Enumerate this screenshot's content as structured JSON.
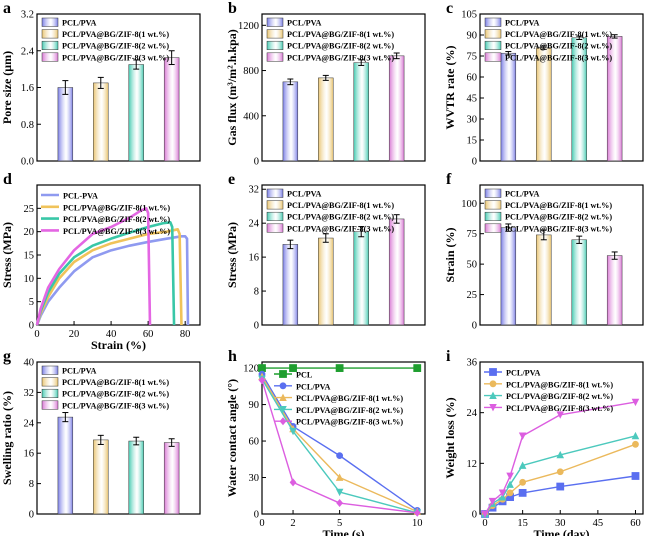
{
  "legend_bar": [
    "PCL/PVA",
    "PCL/PVA@BG/ZIF-8(1 wt.%)",
    "PCL/PVA@BG/ZIF-8(2 wt.%)",
    "PCL/PVA@BG/ZIF-8(3 wt.%)"
  ],
  "colors": [
    "#7b7fe6",
    "#e9c572",
    "#47cbb2",
    "#d979d4"
  ],
  "chart_data": [
    {
      "id": "a",
      "panel_label": "a",
      "type": "bar",
      "title": "",
      "xlabel": "",
      "ylabel": "Pore size (μm)",
      "ylim": [
        0,
        3.2
      ],
      "yticks": [
        0,
        0.8,
        1.6,
        2.4,
        3.2
      ],
      "ytick_labels": [
        "0.0",
        "0.8",
        "1.6",
        "2.4",
        "3.2"
      ],
      "categories": [
        "PCL/PVA",
        "PCL/PVA@BG/ZIF-8(1 wt.%)",
        "PCL/PVA@BG/ZIF-8(2 wt.%)",
        "PCL/PVA@BG/ZIF-8(3 wt.%)"
      ],
      "values": [
        1.6,
        1.7,
        2.1,
        2.25
      ],
      "errors": [
        0.15,
        0.12,
        0.1,
        0.15
      ]
    },
    {
      "id": "b",
      "panel_label": "b",
      "type": "bar",
      "title": "",
      "xlabel": "",
      "ylabel": "Gas flux (m³/m².h.kpa)",
      "ylim": [
        0,
        1300
      ],
      "yticks": [
        0,
        400,
        800,
        1200
      ],
      "ytick_labels": [
        "0",
        "400",
        "800",
        "1200"
      ],
      "categories": [
        "PCL/PVA",
        "PCL/PVA@BG/ZIF-8(1 wt.%)",
        "PCL/PVA@BG/ZIF-8(2 wt.%)",
        "PCL/PVA@BG/ZIF-8(3 wt.%)"
      ],
      "values": [
        700,
        735,
        870,
        930
      ],
      "errors": [
        25,
        22,
        25,
        25
      ]
    },
    {
      "id": "c",
      "panel_label": "c",
      "type": "bar",
      "title": "",
      "xlabel": "",
      "ylabel": "WVTR rate (%)",
      "ylim": [
        0,
        105
      ],
      "yticks": [
        0,
        15,
        30,
        45,
        60,
        75,
        90,
        105
      ],
      "ytick_labels": [
        "0",
        "15",
        "30",
        "45",
        "60",
        "75",
        "90",
        "105"
      ],
      "categories": [
        "PCL/PVA",
        "PCL/PVA@BG/ZIF-8(1 wt.%)",
        "PCL/PVA@BG/ZIF-8(2 wt.%)",
        "PCL/PVA@BG/ZIF-8(3 wt.%)"
      ],
      "values": [
        77,
        81,
        88,
        89
      ],
      "errors": [
        1.2,
        1.2,
        1.2,
        1.2
      ]
    },
    {
      "id": "d",
      "panel_label": "d",
      "type": "line",
      "title": "",
      "xlabel": "Strain (%)",
      "ylabel": "Stress (MPa)",
      "xlim": [
        0,
        88
      ],
      "ylim": [
        0,
        30
      ],
      "xticks": [
        0,
        20,
        40,
        60,
        80
      ],
      "xtick_labels": [
        "0",
        "20",
        "40",
        "60",
        "80"
      ],
      "yticks": [
        0,
        5,
        10,
        15,
        20,
        25
      ],
      "ytick_labels": [
        "0",
        "5",
        "10",
        "15",
        "20",
        "25"
      ],
      "legend": [
        "PCL-PVA",
        "PCL/PVA@BG/ZIF-8(1 wt.%)",
        "PCL/PVA@BG/ZIF-8(2 wt.%)",
        "PCL/PVA@BG/ZIF-8(3 wt.%)"
      ],
      "series": [
        {
          "name": "PCL-PVA",
          "color": "#8f9af0",
          "x": [
            0,
            2,
            6,
            12,
            20,
            30,
            40,
            50,
            60,
            70,
            78,
            80,
            81,
            81.5
          ],
          "y": [
            0,
            2,
            5,
            8,
            11.5,
            14.5,
            16,
            17,
            17.8,
            18.5,
            19,
            19,
            18.5,
            0
          ]
        },
        {
          "name": "PCL/PVA@BG/ZIF-8(1 wt.%)",
          "color": "#f0c35a",
          "x": [
            0,
            2,
            6,
            12,
            20,
            30,
            40,
            50,
            60,
            70,
            76,
            77,
            78
          ],
          "y": [
            0,
            2.5,
            6,
            10,
            13.5,
            16,
            17.5,
            18.5,
            19.5,
            20,
            20.5,
            19.5,
            0
          ]
        },
        {
          "name": "PCL/PVA@BG/ZIF-8(2 wt.%)",
          "color": "#39c7a7",
          "x": [
            0,
            2,
            6,
            12,
            20,
            30,
            40,
            50,
            60,
            68,
            72,
            73,
            74
          ],
          "y": [
            0,
            3,
            7,
            11,
            14.5,
            17,
            18.5,
            19.8,
            21,
            21.8,
            22,
            21,
            0
          ]
        },
        {
          "name": "PCL/PVA@BG/ZIF-8(3 wt.%)",
          "color": "#e466e3",
          "x": [
            0,
            2,
            6,
            12,
            20,
            30,
            40,
            50,
            56,
            59,
            60,
            61
          ],
          "y": [
            0,
            3.5,
            8,
            12,
            16,
            19.5,
            21,
            23,
            24.5,
            25,
            24,
            0
          ]
        }
      ]
    },
    {
      "id": "e",
      "panel_label": "e",
      "type": "bar",
      "title": "",
      "xlabel": "",
      "ylabel": "Stress (MPa)",
      "ylim": [
        0,
        33
      ],
      "yticks": [
        0,
        8,
        16,
        24,
        32
      ],
      "ytick_labels": [
        "0",
        "8",
        "16",
        "24",
        "32"
      ],
      "categories": [
        "PCL/PVA",
        "PCL/PVA@BG/ZIF-8(1 wt.%)",
        "PCL/PVA@BG/ZIF-8(2 wt.%)",
        "PCL/PVA@BG/ZIF-8(3 wt.%)"
      ],
      "values": [
        19,
        20.5,
        22,
        25
      ],
      "errors": [
        1,
        1,
        1.2,
        1
      ]
    },
    {
      "id": "f",
      "panel_label": "f",
      "type": "bar",
      "title": "",
      "xlabel": "",
      "ylabel": "Strain (%)",
      "ylim": [
        0,
        115
      ],
      "yticks": [
        0,
        25,
        50,
        75,
        100
      ],
      "ytick_labels": [
        "0",
        "25",
        "50",
        "75",
        "100"
      ],
      "categories": [
        "PCL/PVA",
        "PCL/PVA@BG/ZIF-8(1 wt.%)",
        "PCL/PVA@BG/ZIF-8(2 wt.%)",
        "PCL/PVA@BG/ZIF-8(3 wt.%)"
      ],
      "values": [
        80,
        74,
        70,
        57
      ],
      "errors": [
        3,
        4,
        3,
        3
      ]
    },
    {
      "id": "g",
      "panel_label": "g",
      "type": "bar",
      "title": "",
      "xlabel": "",
      "ylabel": "Swelling ratio (%)",
      "ylim": [
        0,
        40
      ],
      "yticks": [
        0,
        8,
        16,
        24,
        32,
        40
      ],
      "ytick_labels": [
        "0",
        "8",
        "16",
        "24",
        "32",
        "40"
      ],
      "categories": [
        "PCL/PVA",
        "PCL/PVA@BG/ZIF-8(1 wt.%)",
        "PCL/PVA@BG/ZIF-8(2 wt.%)",
        "PCL/PVA@BG/ZIF-8(3 wt.%)"
      ],
      "values": [
        25.5,
        19.5,
        19.2,
        18.8
      ],
      "errors": [
        1.2,
        1.2,
        1,
        1
      ]
    },
    {
      "id": "h",
      "panel_label": "h",
      "type": "line",
      "title": "",
      "xlabel": "Time (s)",
      "ylabel": "Water contact angle (°)",
      "xlim": [
        0,
        10.5
      ],
      "ylim": [
        0,
        125
      ],
      "xticks": [
        0,
        2,
        5,
        10
      ],
      "xtick_labels": [
        "0",
        "2",
        "5",
        "10"
      ],
      "yticks": [
        0,
        30,
        60,
        90,
        120
      ],
      "ytick_labels": [
        "0",
        "30",
        "60",
        "90",
        "120"
      ],
      "legend": [
        "PCL",
        "PCL/PVA",
        "PCL/PVA@BG/ZIF-8(1 wt.%)",
        "PCL/PVA@BG/ZIF-8(2 wt.%)",
        "PCL/PVA@BG/ZIF-8(3 wt.%)"
      ],
      "series": [
        {
          "name": "PCL",
          "color": "#1f9e2f",
          "marker": "square",
          "x": [
            0,
            2,
            5,
            10
          ],
          "y": [
            120,
            120,
            120,
            120
          ]
        },
        {
          "name": "PCL/PVA",
          "color": "#5a6ff0",
          "marker": "circle",
          "x": [
            0,
            2,
            5,
            10
          ],
          "y": [
            115,
            72,
            48,
            3
          ]
        },
        {
          "name": "PCL/PVA@BG/ZIF-8(1 wt.%)",
          "color": "#ebb95c",
          "marker": "triangle",
          "x": [
            0,
            2,
            5,
            10
          ],
          "y": [
            113,
            70,
            30,
            2
          ]
        },
        {
          "name": "PCL/PVA@BG/ZIF-8(2 wt.%)",
          "color": "#4cc9bd",
          "marker": "triangle-down",
          "x": [
            0,
            2,
            5,
            10
          ],
          "y": [
            111,
            68,
            18,
            1
          ]
        },
        {
          "name": "PCL/PVA@BG/ZIF-8(3 wt.%)",
          "color": "#dc5ee0",
          "marker": "diamond",
          "x": [
            0,
            2,
            5,
            10
          ],
          "y": [
            110,
            26,
            9,
            1
          ]
        }
      ]
    },
    {
      "id": "i",
      "panel_label": "i",
      "type": "line",
      "title": "",
      "xlabel": "Time (day)",
      "ylabel": "Weight loss (%)",
      "xlim": [
        -2,
        63
      ],
      "ylim": [
        0,
        36
      ],
      "xticks": [
        0,
        15,
        30,
        45,
        60
      ],
      "xtick_labels": [
        "0",
        "15",
        "30",
        "45",
        "60"
      ],
      "yticks": [
        0,
        12,
        24,
        36
      ],
      "ytick_labels": [
        "0",
        "12",
        "24",
        "36"
      ],
      "legend": [
        "PCL/PVA",
        "PCL/PVA@BG/ZIF-8(1 wt.%)",
        "PCL/PVA@BG/ZIF-8(2 wt.%)",
        "PCL/PVA@BG/ZIF-8(3 wt.%)"
      ],
      "series": [
        {
          "name": "PCL/PVA",
          "color": "#5a6ff0",
          "marker": "square",
          "x": [
            0,
            3,
            7,
            10,
            15,
            30,
            60
          ],
          "y": [
            0,
            1.5,
            3,
            4,
            5,
            6.5,
            9
          ]
        },
        {
          "name": "PCL/PVA@BG/ZIF-8(1 wt.%)",
          "color": "#ebb95c",
          "marker": "circle",
          "x": [
            0,
            3,
            7,
            10,
            15,
            30,
            60
          ],
          "y": [
            0,
            2,
            3.5,
            5,
            7.5,
            10,
            16.5
          ]
        },
        {
          "name": "PCL/PVA@BG/ZIF-8(2 wt.%)",
          "color": "#4cc9bd",
          "marker": "triangle",
          "x": [
            0,
            3,
            7,
            10,
            15,
            30,
            60
          ],
          "y": [
            0,
            2.5,
            4,
            7,
            11.5,
            14,
            18.5
          ]
        },
        {
          "name": "PCL/PVA@BG/ZIF-8(3 wt.%)",
          "color": "#dc5ee0",
          "marker": "triangle-down",
          "x": [
            0,
            3,
            7,
            10,
            15,
            30,
            60
          ],
          "y": [
            0,
            3,
            5,
            9,
            18.5,
            23.5,
            26.5
          ]
        }
      ]
    }
  ]
}
